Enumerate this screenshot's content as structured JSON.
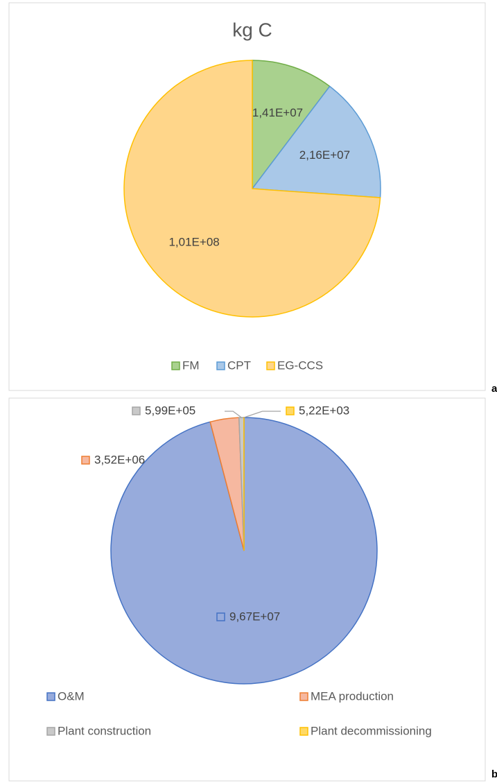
{
  "chart_data": [
    {
      "type": "pie",
      "title": "kg C",
      "panel_label": "a",
      "categories": [
        "FM",
        "CPT",
        "EG-CCS"
      ],
      "values": [
        14100000,
        21600000,
        101000000
      ],
      "value_labels": [
        "1,41E+07",
        "2,16E+07",
        "1,01E+08"
      ],
      "colors": [
        "#a9d18e",
        "#a9c8e8",
        "#ffd68a"
      ],
      "edge_colors": [
        "#70ad47",
        "#5b9bd5",
        "#ffc000"
      ],
      "legend": "bottom"
    },
    {
      "type": "pie",
      "panel_label": "b",
      "categories": [
        "O&M",
        "MEA production",
        "Plant construction",
        "Plant decommissioning"
      ],
      "values": [
        96700000,
        3520000,
        599000,
        5220
      ],
      "value_labels": [
        "9,67E+07",
        "3,52E+06",
        "5,99E+05",
        "5,22E+03"
      ],
      "colors": [
        "#97abdc",
        "#f6b8a0",
        "#c9c9c9",
        "#ffd966"
      ],
      "edge_colors": [
        "#4472c4",
        "#ed7d31",
        "#a5a5a5",
        "#ffc000"
      ],
      "legend": "bottom"
    }
  ]
}
